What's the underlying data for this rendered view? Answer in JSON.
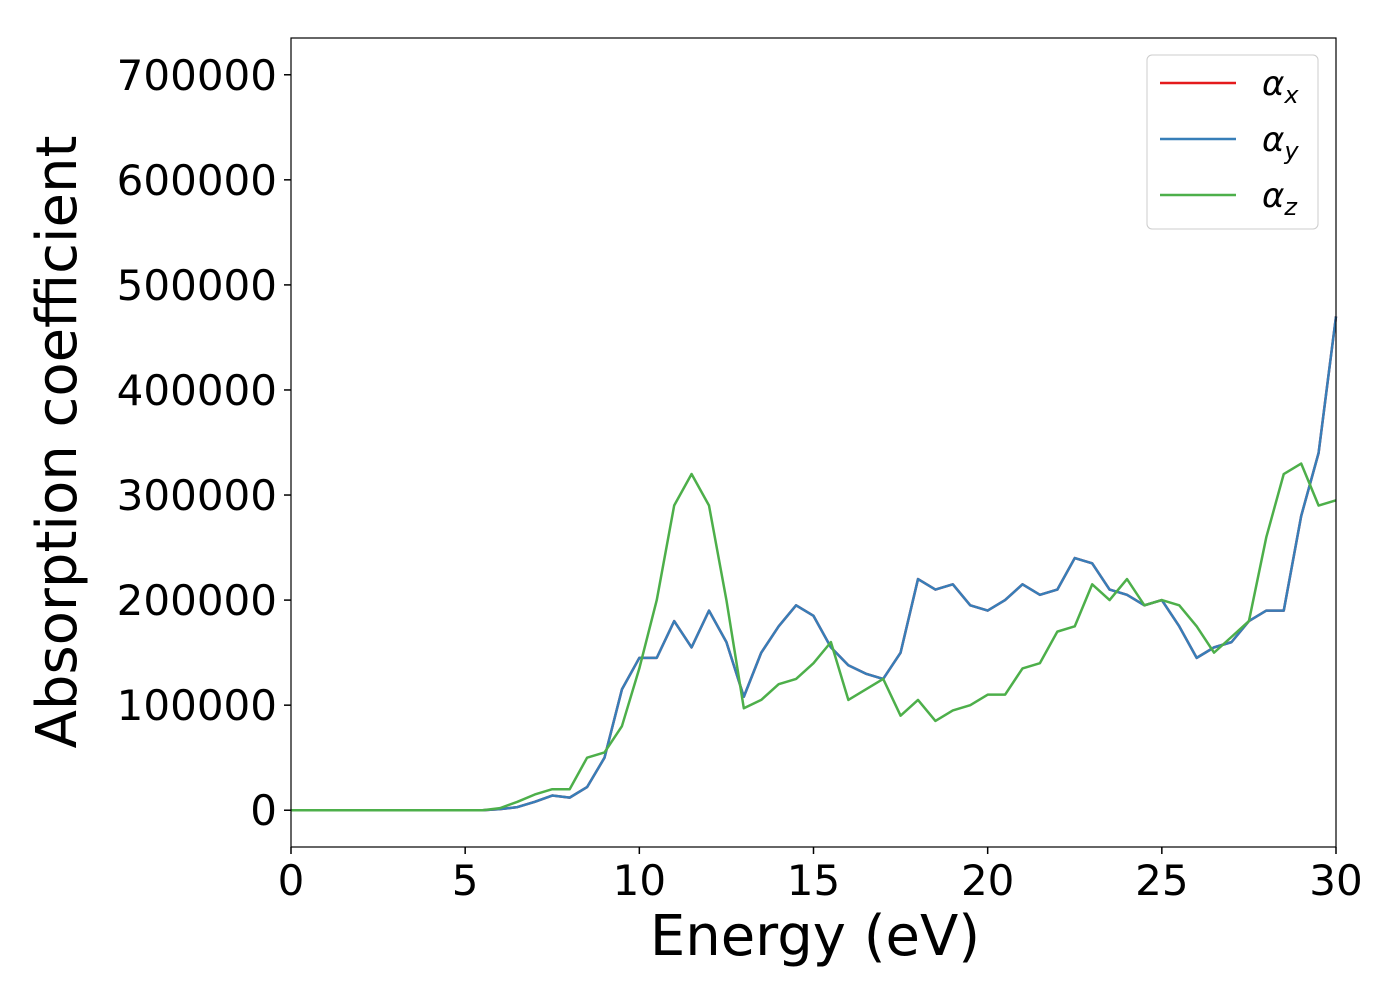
{
  "chart_data": {
    "type": "line",
    "xlabel": "Energy (eV)",
    "ylabel": "Absorption coefficient",
    "x": [
      0,
      0.5,
      1,
      1.5,
      2,
      2.5,
      3,
      3.5,
      4,
      4.5,
      5,
      5.5,
      6,
      6.5,
      7,
      7.5,
      8,
      8.5,
      9,
      9.5,
      10,
      10.5,
      11,
      11.5,
      12,
      12.5,
      13,
      13.5,
      14,
      14.5,
      15,
      15.5,
      16,
      16.5,
      17,
      17.5,
      18,
      18.5,
      19,
      19.5,
      20,
      20.5,
      21,
      21.5,
      22,
      22.5,
      23,
      23.5,
      24,
      24.5,
      25,
      25.5,
      26,
      26.5,
      27,
      27.5,
      28,
      28.5,
      29,
      29.5,
      30
    ],
    "series": [
      {
        "name": "αx",
        "color": "#e41a1c",
        "values": [
          0,
          0,
          0,
          0,
          0,
          0,
          0,
          0,
          0,
          0,
          0,
          0,
          1000,
          3000,
          8000,
          14000,
          12000,
          22000,
          50000,
          115000,
          145000,
          145000,
          180000,
          155000,
          190000,
          160000,
          108000,
          150000,
          175000,
          195000,
          185000,
          155000,
          138000,
          130000,
          125000,
          150000,
          220000,
          210000,
          215000,
          195000,
          190000,
          200000,
          215000,
          205000,
          210000,
          240000,
          235000,
          210000,
          205000,
          195000,
          200000,
          175000,
          145000,
          155000,
          160000,
          180000,
          190000,
          190000,
          280000,
          340000,
          470000
        ]
      },
      {
        "name": "αy",
        "color": "#377eb8",
        "values": [
          0,
          0,
          0,
          0,
          0,
          0,
          0,
          0,
          0,
          0,
          0,
          0,
          1000,
          3000,
          8000,
          14000,
          12000,
          22000,
          50000,
          115000,
          145000,
          145000,
          180000,
          155000,
          190000,
          160000,
          108000,
          150000,
          175000,
          195000,
          185000,
          155000,
          138000,
          130000,
          125000,
          150000,
          220000,
          210000,
          215000,
          195000,
          190000,
          200000,
          215000,
          205000,
          210000,
          240000,
          235000,
          210000,
          205000,
          195000,
          200000,
          175000,
          145000,
          155000,
          160000,
          180000,
          190000,
          190000,
          280000,
          340000,
          470000
        ]
      },
      {
        "name": "αz",
        "color": "#4daf4a",
        "values": [
          0,
          0,
          0,
          0,
          0,
          0,
          0,
          0,
          0,
          0,
          0,
          0,
          2000,
          8000,
          15000,
          20000,
          20000,
          50000,
          55000,
          80000,
          135000,
          200000,
          290000,
          320000,
          290000,
          200000,
          97000,
          105000,
          120000,
          125000,
          140000,
          160000,
          105000,
          115000,
          125000,
          90000,
          105000,
          85000,
          95000,
          100000,
          110000,
          110000,
          135000,
          140000,
          170000,
          175000,
          215000,
          200000,
          220000,
          195000,
          200000,
          195000,
          175000,
          150000,
          165000,
          180000,
          260000,
          320000,
          330000,
          290000,
          295000
        ]
      }
    ],
    "xlim": [
      0,
      30
    ],
    "xticks": [
      0,
      5,
      10,
      15,
      20,
      25,
      30
    ],
    "ylim": [
      -35000,
      735000
    ],
    "yticks": [
      0,
      100000,
      200000,
      300000,
      400000,
      500000,
      600000,
      700000
    ],
    "legend": "upper right"
  }
}
